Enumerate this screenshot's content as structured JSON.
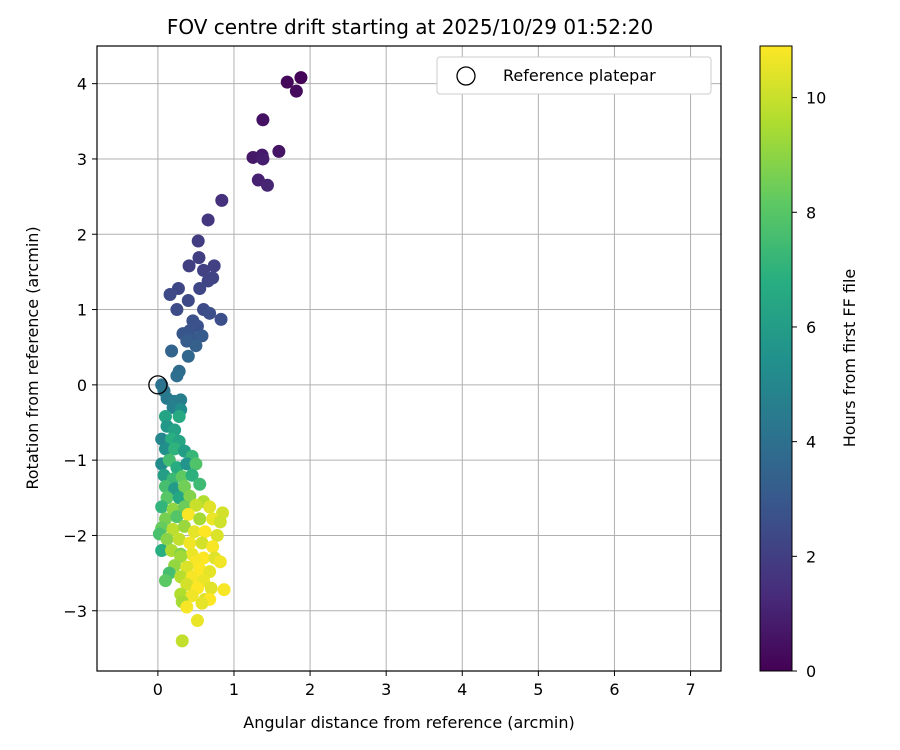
{
  "chart_data": {
    "type": "scatter",
    "title": "FOV centre drift starting at 2025/10/29 01:52:20",
    "xlabel": "Angular distance from reference (arcmin)",
    "ylabel": "Rotation from reference (arcmin)",
    "xlim": [
      -0.8,
      7.4
    ],
    "ylim": [
      -3.8,
      4.5
    ],
    "xticks": [
      0,
      1,
      2,
      3,
      4,
      5,
      6,
      7
    ],
    "yticks": [
      -3,
      -2,
      -1,
      0,
      1,
      2,
      3,
      4
    ],
    "grid": true,
    "legend": {
      "position": "top-right",
      "entries": [
        "Reference platepar"
      ]
    },
    "reference_point": {
      "label": "Reference platepar",
      "x": 0,
      "y": 0
    },
    "colorbar": {
      "label": "Hours from first FF file",
      "colormap": "viridis",
      "range": [
        0,
        10.9
      ],
      "ticks": [
        0,
        2,
        4,
        6,
        8,
        10
      ]
    },
    "series": [
      {
        "name": "FOV centre drift",
        "points": [
          {
            "x": 1.88,
            "y": 4.08,
            "c": 0.1
          },
          {
            "x": 1.7,
            "y": 4.02,
            "c": 0.2
          },
          {
            "x": 1.82,
            "y": 3.9,
            "c": 0.3
          },
          {
            "x": 1.38,
            "y": 3.52,
            "c": 0.5
          },
          {
            "x": 1.59,
            "y": 3.1,
            "c": 0.6
          },
          {
            "x": 1.25,
            "y": 3.02,
            "c": 0.7
          },
          {
            "x": 1.37,
            "y": 3.05,
            "c": 0.8
          },
          {
            "x": 1.38,
            "y": 3.0,
            "c": 0.9
          },
          {
            "x": 1.32,
            "y": 2.72,
            "c": 1.0
          },
          {
            "x": 1.44,
            "y": 2.65,
            "c": 1.1
          },
          {
            "x": 0.84,
            "y": 2.45,
            "c": 1.5
          },
          {
            "x": 0.66,
            "y": 2.19,
            "c": 1.7
          },
          {
            "x": 0.53,
            "y": 1.91,
            "c": 1.9
          },
          {
            "x": 0.54,
            "y": 1.69,
            "c": 2.0
          },
          {
            "x": 0.41,
            "y": 1.58,
            "c": 2.0
          },
          {
            "x": 0.6,
            "y": 1.52,
            "c": 2.1
          },
          {
            "x": 0.74,
            "y": 1.58,
            "c": 2.1
          },
          {
            "x": 0.72,
            "y": 1.42,
            "c": 2.2
          },
          {
            "x": 0.66,
            "y": 1.38,
            "c": 2.2
          },
          {
            "x": 0.55,
            "y": 1.28,
            "c": 2.3
          },
          {
            "x": 0.27,
            "y": 1.28,
            "c": 2.3
          },
          {
            "x": 0.16,
            "y": 1.2,
            "c": 2.4
          },
          {
            "x": 0.4,
            "y": 1.12,
            "c": 2.4
          },
          {
            "x": 0.25,
            "y": 1.0,
            "c": 2.5
          },
          {
            "x": 0.6,
            "y": 1.0,
            "c": 2.5
          },
          {
            "x": 0.68,
            "y": 0.95,
            "c": 2.6
          },
          {
            "x": 0.83,
            "y": 0.87,
            "c": 2.6
          },
          {
            "x": 0.46,
            "y": 0.85,
            "c": 2.7
          },
          {
            "x": 0.52,
            "y": 0.78,
            "c": 2.7
          },
          {
            "x": 0.42,
            "y": 0.72,
            "c": 2.8
          },
          {
            "x": 0.33,
            "y": 0.68,
            "c": 2.9
          },
          {
            "x": 0.45,
            "y": 0.62,
            "c": 3.0
          },
          {
            "x": 0.58,
            "y": 0.65,
            "c": 3.1
          },
          {
            "x": 0.38,
            "y": 0.58,
            "c": 3.2
          },
          {
            "x": 0.5,
            "y": 0.52,
            "c": 3.3
          },
          {
            "x": 0.18,
            "y": 0.45,
            "c": 3.5
          },
          {
            "x": 0.4,
            "y": 0.38,
            "c": 3.6
          },
          {
            "x": 0.28,
            "y": 0.18,
            "c": 3.8
          },
          {
            "x": 0.25,
            "y": 0.12,
            "c": 3.9
          },
          {
            "x": 0.05,
            "y": 0.0,
            "c": 4.1
          },
          {
            "x": 0.08,
            "y": -0.08,
            "c": 4.2
          },
          {
            "x": 0.12,
            "y": -0.18,
            "c": 4.4
          },
          {
            "x": 0.22,
            "y": -0.22,
            "c": 4.5
          },
          {
            "x": 0.3,
            "y": -0.2,
            "c": 4.6
          },
          {
            "x": 0.2,
            "y": -0.3,
            "c": 4.7
          },
          {
            "x": 0.3,
            "y": -0.33,
            "c": 5.3
          },
          {
            "x": 0.1,
            "y": -0.42,
            "c": 6.3
          },
          {
            "x": 0.28,
            "y": -0.42,
            "c": 6.6
          },
          {
            "x": 0.12,
            "y": -0.55,
            "c": 5.8
          },
          {
            "x": 0.22,
            "y": -0.6,
            "c": 6.2
          },
          {
            "x": 0.05,
            "y": -0.72,
            "c": 5.0
          },
          {
            "x": 0.18,
            "y": -0.72,
            "c": 6.8
          },
          {
            "x": 0.28,
            "y": -0.75,
            "c": 6.4
          },
          {
            "x": 0.1,
            "y": -0.85,
            "c": 5.4
          },
          {
            "x": 0.22,
            "y": -0.85,
            "c": 7.0
          },
          {
            "x": 0.35,
            "y": -0.88,
            "c": 6.0
          },
          {
            "x": 0.45,
            "y": -0.95,
            "c": 7.2
          },
          {
            "x": 0.05,
            "y": -1.05,
            "c": 5.2
          },
          {
            "x": 0.15,
            "y": -1.0,
            "c": 7.5
          },
          {
            "x": 0.25,
            "y": -1.1,
            "c": 6.7
          },
          {
            "x": 0.38,
            "y": -1.05,
            "c": 5.6
          },
          {
            "x": 0.5,
            "y": -1.05,
            "c": 7.8
          },
          {
            "x": 0.08,
            "y": -1.2,
            "c": 6.1
          },
          {
            "x": 0.2,
            "y": -1.25,
            "c": 7.3
          },
          {
            "x": 0.32,
            "y": -1.22,
            "c": 8.2
          },
          {
            "x": 0.45,
            "y": -1.2,
            "c": 6.9
          },
          {
            "x": 0.1,
            "y": -1.35,
            "c": 7.6
          },
          {
            "x": 0.22,
            "y": -1.38,
            "c": 5.9
          },
          {
            "x": 0.35,
            "y": -1.35,
            "c": 8.5
          },
          {
            "x": 0.55,
            "y": -1.32,
            "c": 7.4
          },
          {
            "x": 0.12,
            "y": -1.5,
            "c": 8.0
          },
          {
            "x": 0.28,
            "y": -1.5,
            "c": 6.5
          },
          {
            "x": 0.42,
            "y": -1.48,
            "c": 8.8
          },
          {
            "x": 0.6,
            "y": -1.55,
            "c": 9.6
          },
          {
            "x": 0.05,
            "y": -1.62,
            "c": 7.1
          },
          {
            "x": 0.2,
            "y": -1.65,
            "c": 9.0
          },
          {
            "x": 0.35,
            "y": -1.62,
            "c": 8.4
          },
          {
            "x": 0.5,
            "y": -1.6,
            "c": 10.0
          },
          {
            "x": 0.68,
            "y": -1.62,
            "c": 10.4
          },
          {
            "x": 0.85,
            "y": -1.7,
            "c": 10.2
          },
          {
            "x": 0.1,
            "y": -1.78,
            "c": 8.6
          },
          {
            "x": 0.25,
            "y": -1.75,
            "c": 7.9
          },
          {
            "x": 0.4,
            "y": -1.72,
            "c": 10.8
          },
          {
            "x": 0.55,
            "y": -1.78,
            "c": 9.4
          },
          {
            "x": 0.72,
            "y": -1.78,
            "c": 10.6
          },
          {
            "x": 0.82,
            "y": -1.82,
            "c": 10.1
          },
          {
            "x": 0.05,
            "y": -1.9,
            "c": 8.3
          },
          {
            "x": 0.2,
            "y": -1.92,
            "c": 9.8
          },
          {
            "x": 0.35,
            "y": -1.88,
            "c": 9.2
          },
          {
            "x": 0.48,
            "y": -1.95,
            "c": 10.5
          },
          {
            "x": 0.62,
            "y": -1.95,
            "c": 10.9
          },
          {
            "x": 0.78,
            "y": -2.0,
            "c": 10.3
          },
          {
            "x": 0.02,
            "y": -1.98,
            "c": 7.7
          },
          {
            "x": 0.12,
            "y": -2.05,
            "c": 8.9
          },
          {
            "x": 0.28,
            "y": -2.05,
            "c": 9.9
          },
          {
            "x": 0.42,
            "y": -2.1,
            "c": 10.7
          },
          {
            "x": 0.58,
            "y": -2.1,
            "c": 10.2
          },
          {
            "x": 0.72,
            "y": -2.15,
            "c": 10.8
          },
          {
            "x": 0.05,
            "y": -2.2,
            "c": 6.8
          },
          {
            "x": 0.18,
            "y": -2.2,
            "c": 9.5
          },
          {
            "x": 0.3,
            "y": -2.25,
            "c": 8.7
          },
          {
            "x": 0.45,
            "y": -2.25,
            "c": 10.6
          },
          {
            "x": 0.6,
            "y": -2.3,
            "c": 10.9
          },
          {
            "x": 0.75,
            "y": -2.3,
            "c": 10.4
          },
          {
            "x": 0.3,
            "y": -2.28,
            "c": 9.3
          },
          {
            "x": 0.5,
            "y": -2.35,
            "c": 10.8
          },
          {
            "x": 0.82,
            "y": -2.35,
            "c": 10.7
          },
          {
            "x": 0.22,
            "y": -2.4,
            "c": 9.1
          },
          {
            "x": 0.38,
            "y": -2.42,
            "c": 10.3
          },
          {
            "x": 0.55,
            "y": -2.45,
            "c": 10.9
          },
          {
            "x": 0.68,
            "y": -2.48,
            "c": 10.5
          },
          {
            "x": 0.15,
            "y": -2.5,
            "c": 7.6
          },
          {
            "x": 0.3,
            "y": -2.55,
            "c": 9.7
          },
          {
            "x": 0.45,
            "y": -2.55,
            "c": 10.8
          },
          {
            "x": 0.6,
            "y": -2.6,
            "c": 10.6
          },
          {
            "x": 0.1,
            "y": -2.6,
            "c": 8.1
          },
          {
            "x": 0.38,
            "y": -2.65,
            "c": 10.2
          },
          {
            "x": 0.52,
            "y": -2.7,
            "c": 10.9
          },
          {
            "x": 0.7,
            "y": -2.7,
            "c": 10.4
          },
          {
            "x": 0.87,
            "y": -2.72,
            "c": 10.8
          },
          {
            "x": 0.3,
            "y": -2.78,
            "c": 9.6
          },
          {
            "x": 0.45,
            "y": -2.8,
            "c": 10.7
          },
          {
            "x": 0.62,
            "y": -2.85,
            "c": 10.3
          },
          {
            "x": 0.32,
            "y": -2.88,
            "c": 9.4
          },
          {
            "x": 0.68,
            "y": -2.85,
            "c": 10.9
          },
          {
            "x": 0.58,
            "y": -2.9,
            "c": 10.5
          },
          {
            "x": 0.38,
            "y": -2.95,
            "c": 10.8
          },
          {
            "x": 0.52,
            "y": -3.13,
            "c": 10.6
          },
          {
            "x": 0.32,
            "y": -3.4,
            "c": 9.9
          }
        ]
      }
    ]
  }
}
